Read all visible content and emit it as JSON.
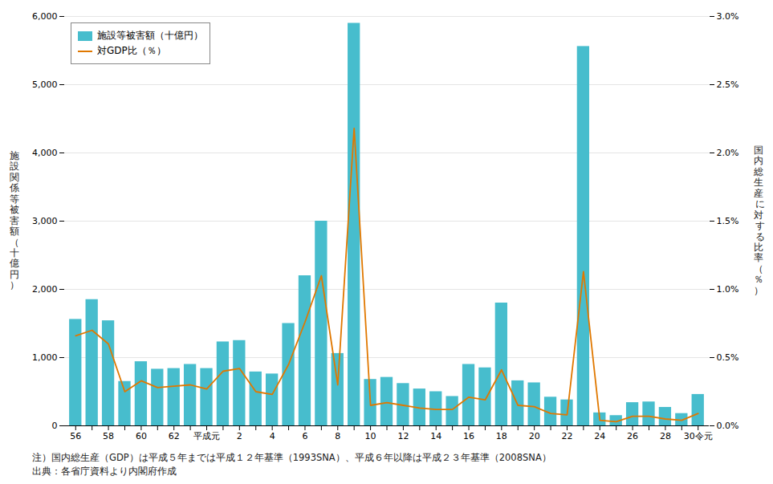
{
  "chart_data": {
    "type": "bar",
    "ylabel": "施\n設\n関\n係\n等\n被\n害\n額\n（\n十\n億\n円\n）",
    "y2label": "国\n内\n総\n生\n産\n に\n対\n す\n る\n比\n率\n（\n％\n）",
    "annotations": [
      "注）国内総生産（GDP）は平成５年までは平成１２年基準（1993SNA）、平成６年以降は平成２３年基準（2008SNA）",
      "出典：各省庁資料より内閣府作成"
    ],
    "categories": [
      "56",
      null,
      "58",
      null,
      "60",
      null,
      "62",
      null,
      "平成元",
      null,
      "2",
      null,
      "4",
      null,
      "6",
      null,
      "8",
      null,
      "10",
      null,
      "12",
      null,
      "14",
      null,
      "16",
      null,
      "18",
      null,
      "20",
      null,
      "22",
      null,
      "24",
      null,
      "26",
      null,
      "28",
      null,
      "30令元"
    ],
    "series": [
      {
        "name": "施設等被害額（十億円）",
        "type": "bar",
        "color": "#47BDCD",
        "values": [
          1560,
          1850,
          1540,
          650,
          940,
          830,
          840,
          900,
          840,
          1230,
          1250,
          790,
          760,
          1500,
          2200,
          3000,
          1060,
          5900,
          680,
          710,
          620,
          540,
          500,
          430,
          900,
          850,
          1800,
          660,
          630,
          420,
          380,
          5560,
          190,
          150,
          340,
          350,
          270,
          180,
          460
        ]
      },
      {
        "name": "対GDP比（％）",
        "type": "line",
        "color": "#E07800",
        "axis": "y2",
        "values": [
          0.66,
          0.7,
          0.6,
          0.25,
          0.33,
          0.28,
          0.29,
          0.3,
          0.27,
          0.4,
          0.42,
          0.25,
          0.23,
          0.45,
          0.76,
          1.1,
          0.3,
          2.18,
          0.15,
          0.17,
          0.15,
          0.13,
          0.12,
          0.12,
          0.21,
          0.19,
          0.41,
          0.15,
          0.14,
          0.09,
          0.08,
          1.13,
          0.04,
          0.03,
          0.07,
          0.07,
          0.05,
          0.04,
          0.09
        ]
      }
    ],
    "ylim": [
      0,
      6000
    ],
    "yticks": [
      0,
      {
        "value": 1000,
        "label": "1,000"
      },
      {
        "value": 2000,
        "label": "2,000"
      },
      {
        "value": 3000,
        "label": "3,000"
      },
      {
        "value": 4000,
        "label": "4,000"
      },
      {
        "value": 5000,
        "label": "5,000"
      },
      {
        "value": 6000,
        "label": "6,000"
      }
    ],
    "y2lim": [
      0,
      3.0
    ],
    "y2ticks": [
      {
        "value": 0.0,
        "label": "0.0%"
      },
      {
        "value": 0.5,
        "label": "0.5%"
      },
      {
        "value": 1.0,
        "label": "1.0%"
      },
      {
        "value": 1.5,
        "label": "1.5%"
      },
      {
        "value": 2.0,
        "label": "2.0%"
      },
      {
        "value": 2.5,
        "label": "2.5%"
      },
      {
        "value": 3.0,
        "label": "3.0%"
      }
    ],
    "grid": true,
    "legend": "upper left"
  }
}
